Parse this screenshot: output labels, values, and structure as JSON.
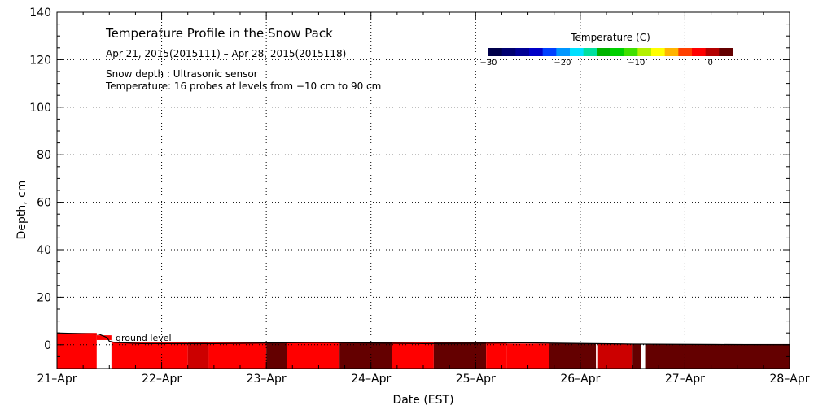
{
  "chart_data": {
    "type": "heatmap",
    "title": "Temperature Profile in the Snow Pack",
    "date_range": "Apr 21, 2015(2015111) – Apr 28, 2015(2015118)",
    "notes": [
      "Snow depth : Ultrasonic sensor",
      "Temperature: 16 probes at levels from −10 cm to 90 cm"
    ],
    "xlabel": "Date (EST)",
    "ylabel": "Depth, cm",
    "x_ticks": [
      "21–Apr",
      "22–Apr",
      "23–Apr",
      "24–Apr",
      "25–Apr",
      "26–Apr",
      "27–Apr",
      "28–Apr"
    ],
    "y_ticks": [
      0,
      20,
      40,
      60,
      80,
      100,
      120,
      140
    ],
    "xlim_days": [
      0,
      7
    ],
    "ylim": [
      -10,
      140
    ],
    "grid": true,
    "annotation": "ground level",
    "colorbar": {
      "title": "Temperature (C)",
      "ticks": [
        "−30",
        "−20",
        "−10",
        "0"
      ],
      "range": [
        -30,
        3
      ],
      "colors": [
        "#00004a",
        "#000070",
        "#000096",
        "#0000c8",
        "#0040ff",
        "#0096ff",
        "#00e0ff",
        "#00e0a0",
        "#00b400",
        "#00d000",
        "#40e000",
        "#b4f000",
        "#ffff00",
        "#ffb400",
        "#ff4000",
        "#ff0000",
        "#b40000",
        "#640000"
      ]
    },
    "snow_surface": [
      [
        0,
        5
      ],
      [
        0.4,
        4.5
      ],
      [
        0.48,
        3
      ],
      [
        0.5,
        1.5
      ],
      [
        0.55,
        1
      ],
      [
        0.8,
        0.5
      ],
      [
        1.5,
        0.5
      ],
      [
        2.5,
        1
      ],
      [
        3.5,
        0.5
      ],
      [
        4.5,
        0.8
      ],
      [
        5.5,
        0.3
      ],
      [
        6.3,
        0.1
      ],
      [
        7,
        0
      ]
    ],
    "temperature_regions": [
      {
        "x": [
          0,
          0.38
        ],
        "y": [
          -10,
          5
        ],
        "t": 0
      },
      {
        "x": [
          0.38,
          0.52
        ],
        "y": [
          -10,
          4
        ],
        "t": 0
      },
      {
        "x": [
          0.52,
          1.25
        ],
        "y": [
          -10,
          1
        ],
        "t": 0
      },
      {
        "x": [
          1.25,
          1.45
        ],
        "y": [
          -10,
          1
        ],
        "t": 1
      },
      {
        "x": [
          1.45,
          2.0
        ],
        "y": [
          -10,
          1
        ],
        "t": 0
      },
      {
        "x": [
          2.0,
          2.2
        ],
        "y": [
          -10,
          1
        ],
        "t": 2
      },
      {
        "x": [
          2.2,
          2.7
        ],
        "y": [
          -10,
          1
        ],
        "t": 0
      },
      {
        "x": [
          2.7,
          3.2
        ],
        "y": [
          -10,
          1
        ],
        "t": 2
      },
      {
        "x": [
          3.2,
          3.6
        ],
        "y": [
          -10,
          1
        ],
        "t": 0
      },
      {
        "x": [
          3.6,
          4.1
        ],
        "y": [
          -10,
          1
        ],
        "t": 2
      },
      {
        "x": [
          4.1,
          4.3
        ],
        "y": [
          -10,
          1
        ],
        "t": 0
      },
      {
        "x": [
          4.3,
          4.7
        ],
        "y": [
          -10,
          0.5
        ],
        "t": 0
      },
      {
        "x": [
          4.7,
          5.15
        ],
        "y": [
          -10,
          0.5
        ],
        "t": 2
      },
      {
        "x": [
          5.15,
          5.5
        ],
        "y": [
          -10,
          0.3
        ],
        "t": 1
      },
      {
        "x": [
          5.5,
          7.0
        ],
        "y": [
          -10,
          0.3
        ],
        "t": 2
      }
    ],
    "gaps": [
      [
        0.38,
        0.52
      ],
      [
        5.15,
        5.17
      ],
      [
        5.58,
        5.62
      ]
    ]
  }
}
